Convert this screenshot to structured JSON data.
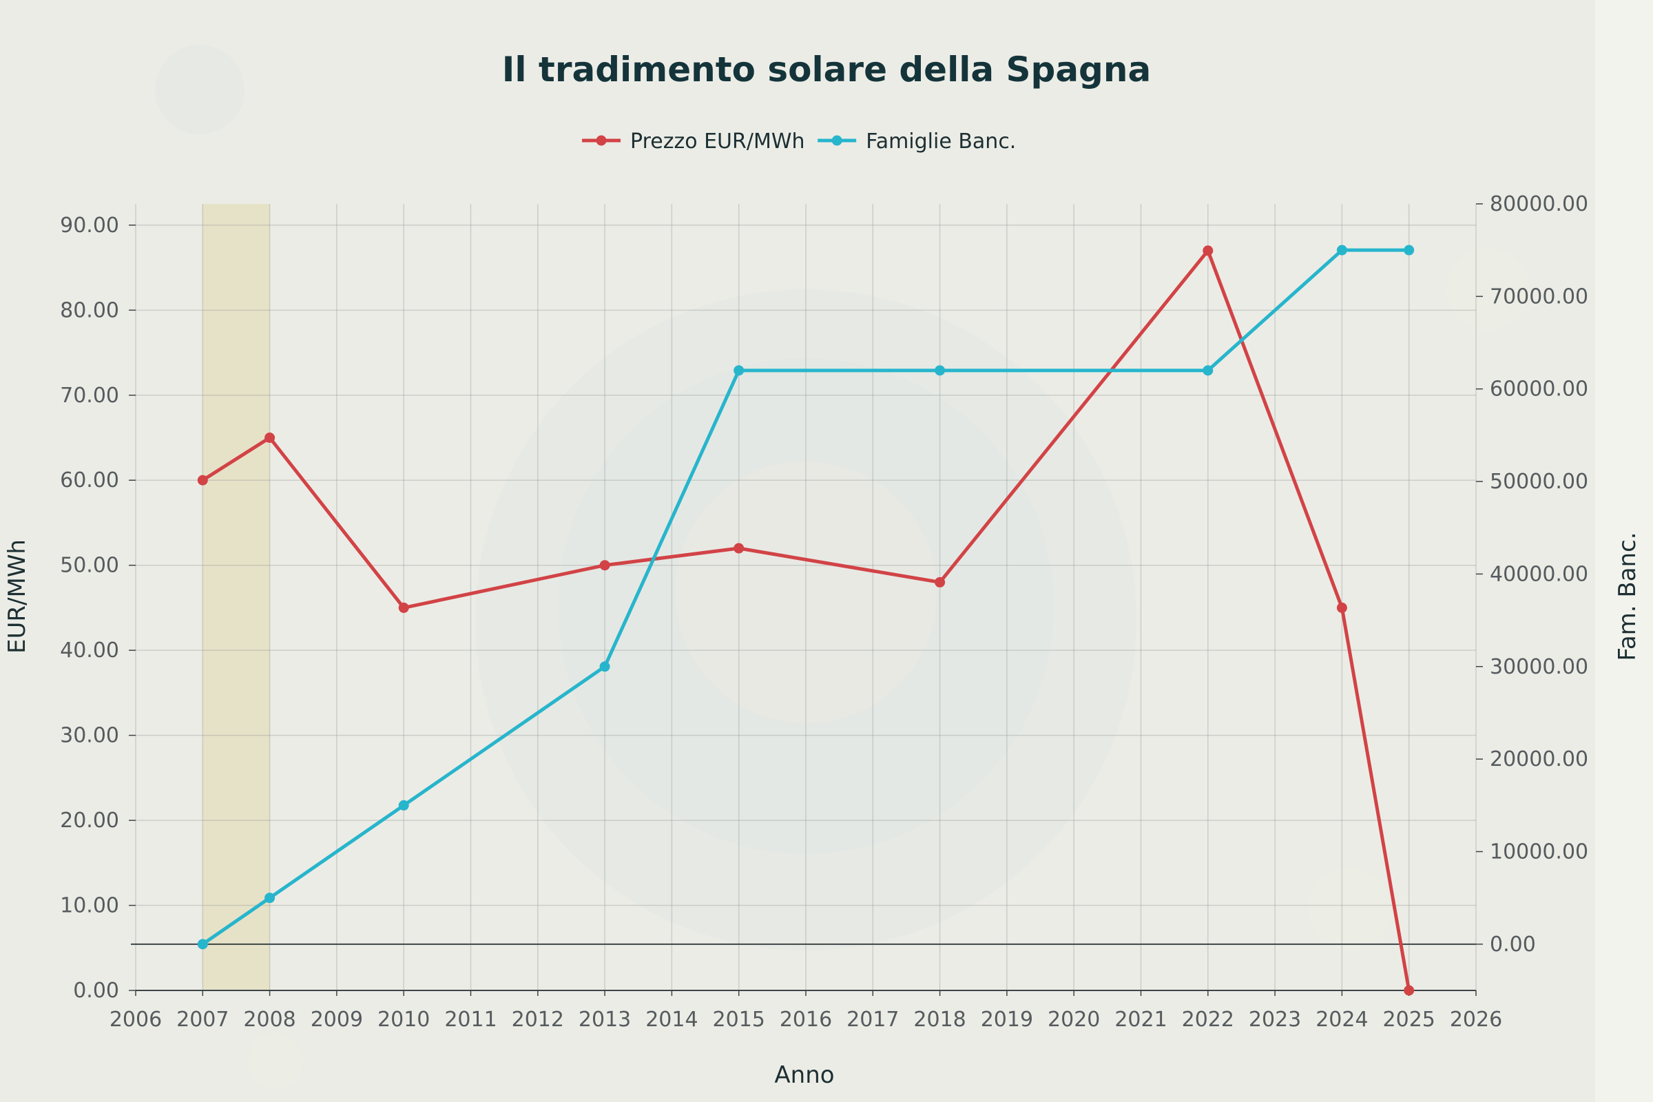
{
  "chart_data": {
    "type": "line",
    "title": "Il tradimento solare della Spagna",
    "xlabel": "Anno",
    "ylabel": "EUR/MWh",
    "y2label": "Fam. Banc.",
    "x": [
      2007,
      2008,
      2010,
      2013,
      2015,
      2018,
      2022,
      2024,
      2025
    ],
    "xlim": [
      2006,
      2026
    ],
    "xticks": [
      2006,
      2007,
      2008,
      2009,
      2010,
      2011,
      2012,
      2013,
      2014,
      2015,
      2016,
      2017,
      2018,
      2019,
      2020,
      2021,
      2022,
      2023,
      2024,
      2025,
      2026
    ],
    "ylim": [
      0,
      92.5
    ],
    "yticks": [
      "0.00",
      "10.00",
      "20.00",
      "30.00",
      "40.00",
      "50.00",
      "60.00",
      "70.00",
      "80.00",
      "90.00"
    ],
    "y2lim": [
      -5000,
      80000
    ],
    "y2ticks": [
      "0.00",
      "10000.00",
      "20000.00",
      "30000.00",
      "40000.00",
      "50000.00",
      "60000.00",
      "70000.00",
      "80000.00"
    ],
    "highlight_range": [
      2007,
      2008
    ],
    "grid": true,
    "legend_position": "top-center",
    "series": [
      {
        "name": "Prezzo EUR/MWh",
        "axis": "left",
        "color": "#d24346",
        "values": [
          60,
          65,
          45,
          50,
          52,
          48,
          87,
          45,
          0
        ]
      },
      {
        "name": "Famiglie Banc.",
        "axis": "right",
        "color": "#27b5cc",
        "values": [
          0,
          5000,
          15000,
          30000,
          62000,
          62000,
          62000,
          75000,
          75000
        ]
      }
    ]
  }
}
